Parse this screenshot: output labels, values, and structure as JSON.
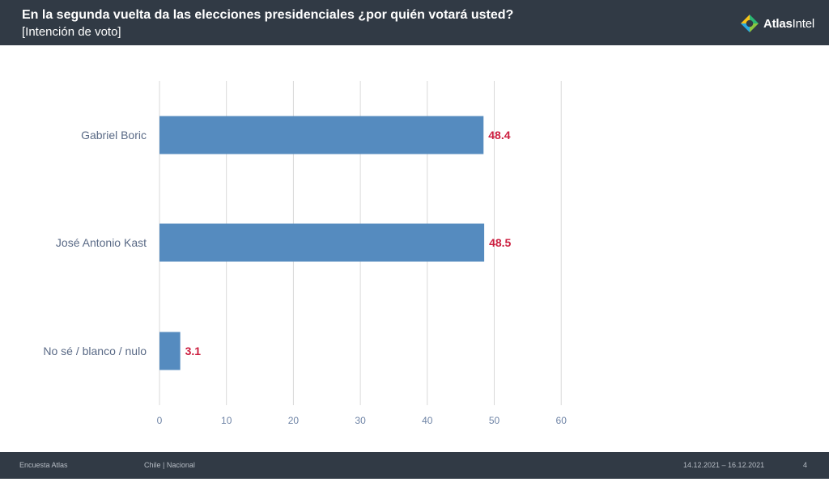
{
  "header": {
    "title": "En la segunda vuelta da las elecciones presidenciales ¿por quién votará usted?",
    "subtitle": "[Intención de voto]",
    "logo_text_bold": "Atlas",
    "logo_text_light": "Intel",
    "logo_icon": "atlasintel-logo-icon"
  },
  "footer": {
    "left": "Encuesta Atlas",
    "middle": "Chile | Nacional",
    "date": "14.12.2021 – 16.12.2021",
    "page": "4"
  },
  "colors": {
    "bar": "#558bbf",
    "value_label": "#cc1e3f",
    "header_bg": "#313a45",
    "grid": "#d9d9d9",
    "category_text": "#5a6a86",
    "tick_text": "#6f84a6"
  },
  "chart_data": {
    "type": "bar",
    "orientation": "horizontal",
    "categories": [
      "Gabriel Boric",
      "José Antonio Kast",
      "No sé / blanco / nulo"
    ],
    "values": [
      48.4,
      48.5,
      3.1
    ],
    "value_labels": [
      "48.4",
      "48.5",
      "3.1"
    ],
    "xlim": [
      0,
      60
    ],
    "xticks": [
      "0",
      "10",
      "20",
      "30",
      "40",
      "50",
      "60"
    ],
    "grid": "vertical",
    "xlabel": "",
    "ylabel": ""
  }
}
